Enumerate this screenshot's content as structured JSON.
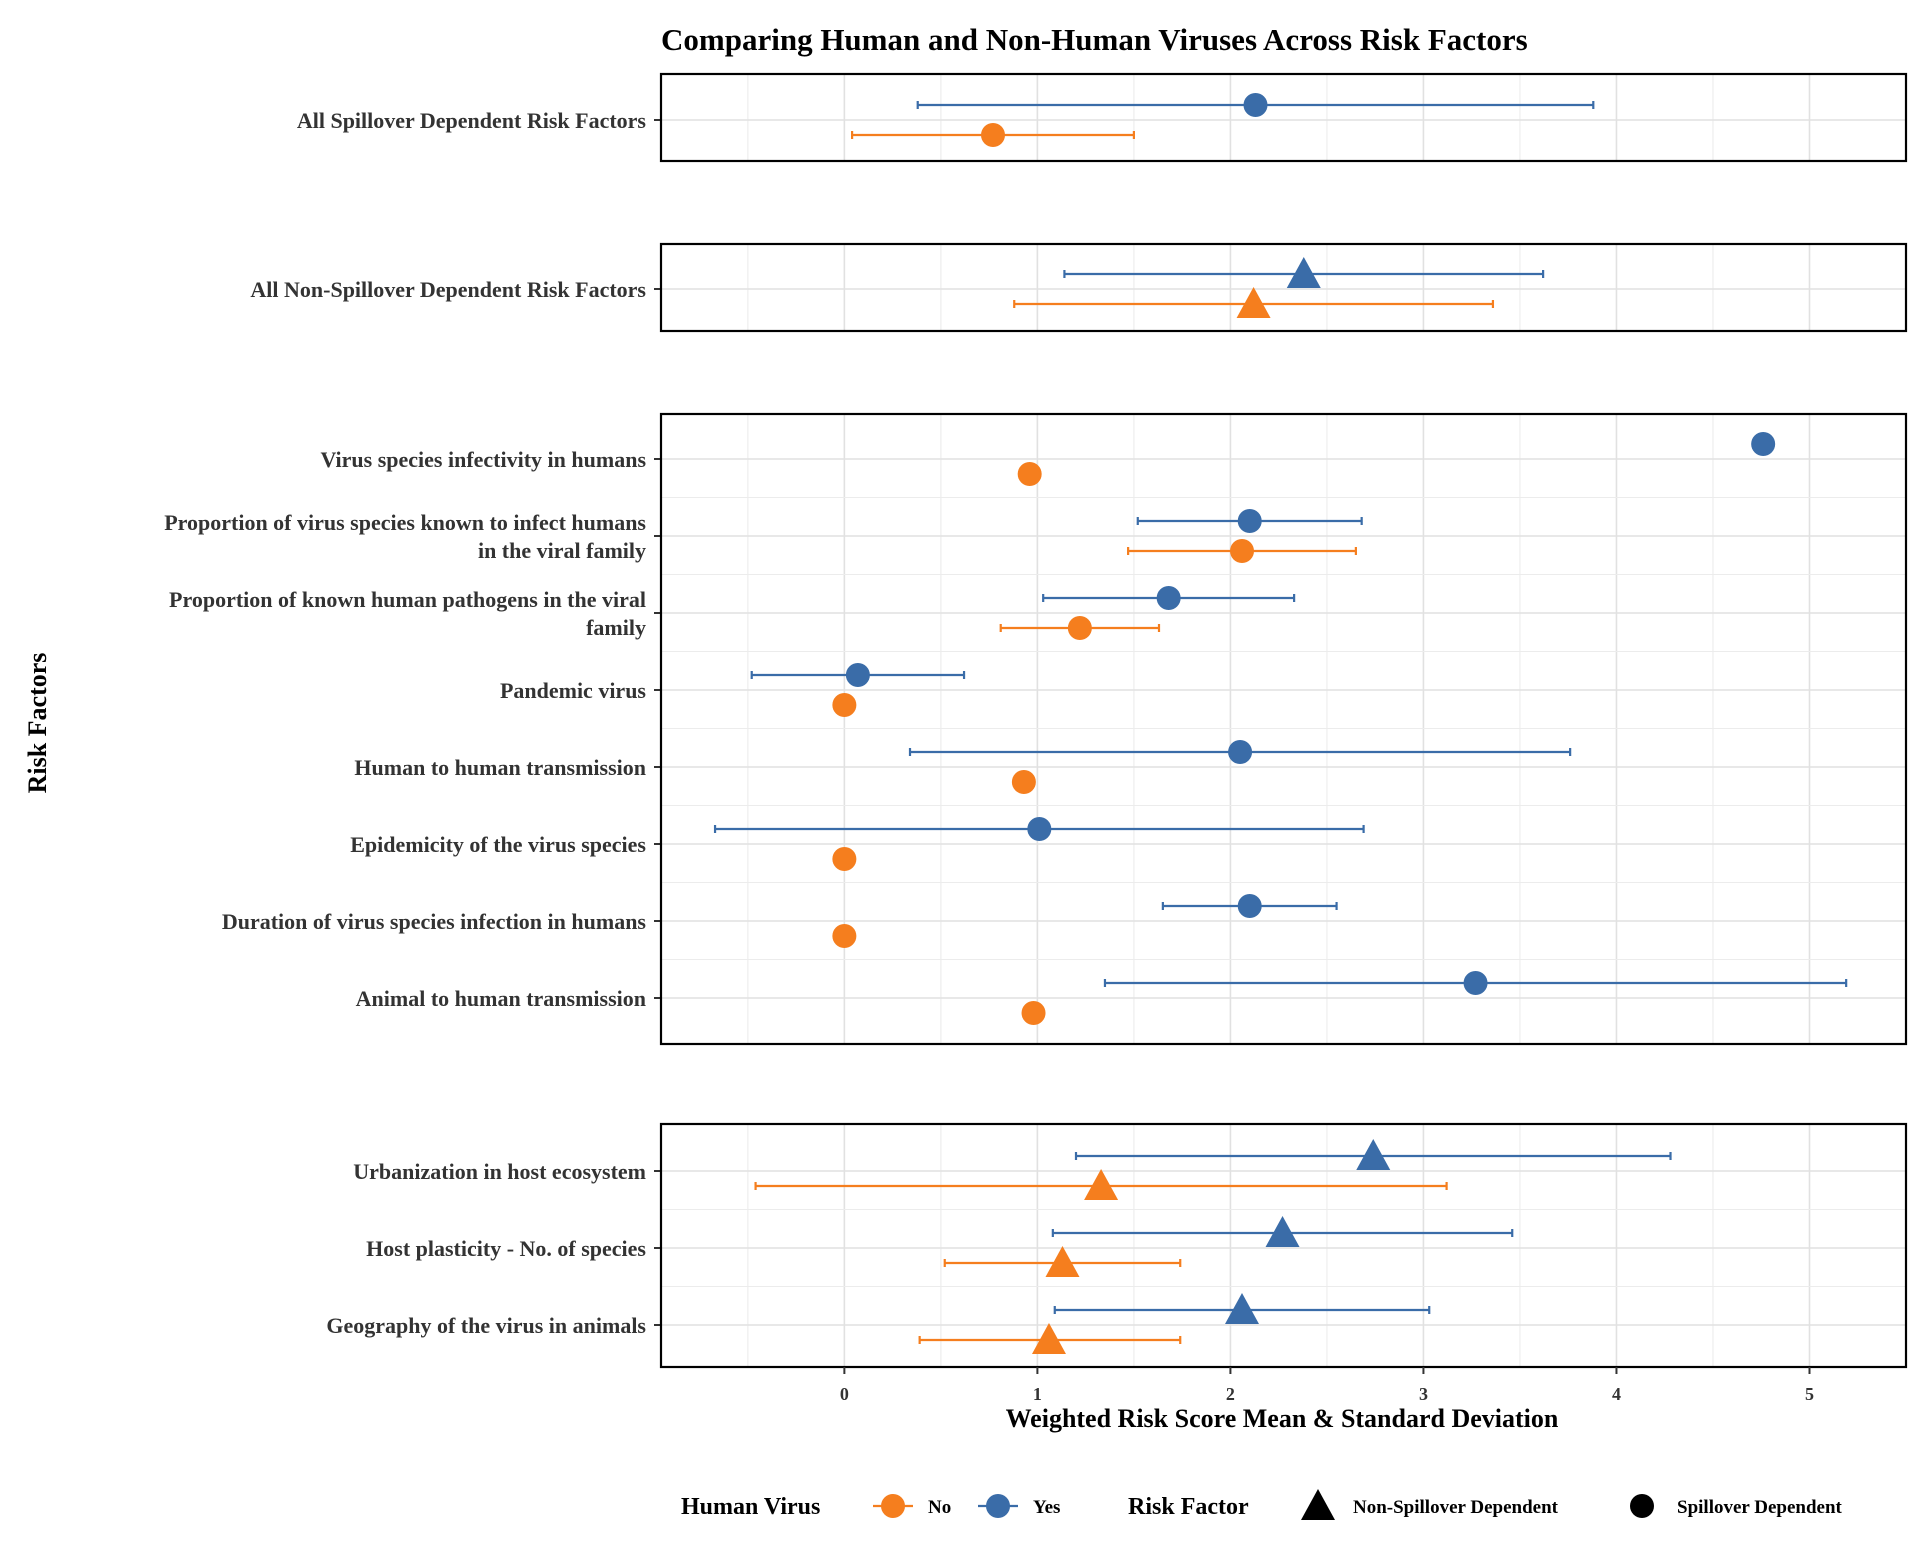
{
  "chart_data": {
    "type": "scatter",
    "title": "Comparing Human and Non-Human Viruses Across Risk Factors",
    "xlabel": "Weighted Risk Score Mean & Standard Deviation",
    "ylabel": "Risk Factors",
    "xlim": [
      -0.95,
      5.5
    ],
    "x_ticks": [
      "0",
      "1",
      "2",
      "3",
      "4",
      "5"
    ],
    "grid": true,
    "legend_placement": "bottom",
    "colors": {
      "No": "#F57E1E",
      "Yes": "#3A6CA8"
    },
    "legend": {
      "human_virus_title": "Human Virus",
      "human_virus_items": [
        "No",
        "Yes"
      ],
      "risk_factor_title": "Risk Factor",
      "risk_factor_items": [
        "Non-Spillover Dependent",
        "Spillover Dependent"
      ]
    },
    "panels": [
      {
        "categories": [
          {
            "label": [
              "All Spillover Dependent Risk Factors"
            ],
            "shape": "circle",
            "yes": {
              "mean": 2.13,
              "lo": 0.38,
              "hi": 3.88
            },
            "no": {
              "mean": 0.77,
              "lo": 0.04,
              "hi": 1.5
            }
          }
        ]
      },
      {
        "categories": [
          {
            "label": [
              "All Non-Spillover Dependent Risk Factors"
            ],
            "shape": "triangle",
            "yes": {
              "mean": 2.38,
              "lo": 1.14,
              "hi": 3.62
            },
            "no": {
              "mean": 2.12,
              "lo": 0.88,
              "hi": 3.36
            }
          }
        ]
      },
      {
        "categories": [
          {
            "label": [
              "Virus species infectivity in humans"
            ],
            "shape": "circle",
            "yes": {
              "mean": 4.76
            },
            "no": {
              "mean": 0.96
            }
          },
          {
            "label": [
              "Proportion of virus species known to infect humans",
              "in the viral family"
            ],
            "shape": "circle",
            "yes": {
              "mean": 2.1,
              "lo": 1.52,
              "hi": 2.68
            },
            "no": {
              "mean": 2.06,
              "lo": 1.47,
              "hi": 2.65
            }
          },
          {
            "label": [
              "Proportion of known human pathogens in the viral",
              "family"
            ],
            "shape": "circle",
            "yes": {
              "mean": 1.68,
              "lo": 1.03,
              "hi": 2.33
            },
            "no": {
              "mean": 1.22,
              "lo": 0.81,
              "hi": 1.63
            }
          },
          {
            "label": [
              "Pandemic virus"
            ],
            "shape": "circle",
            "yes": {
              "mean": 0.07,
              "lo": -0.48,
              "hi": 0.62
            },
            "no": {
              "mean": 0.0
            }
          },
          {
            "label": [
              "Human to human transmission"
            ],
            "shape": "circle",
            "yes": {
              "mean": 2.05,
              "lo": 0.34,
              "hi": 3.76
            },
            "no": {
              "mean": 0.93
            }
          },
          {
            "label": [
              "Epidemicity of the virus species"
            ],
            "shape": "circle",
            "yes": {
              "mean": 1.01,
              "lo": -0.67,
              "hi": 2.69
            },
            "no": {
              "mean": 0.0
            }
          },
          {
            "label": [
              "Duration of virus species infection in humans"
            ],
            "shape": "circle",
            "yes": {
              "mean": 2.1,
              "lo": 1.65,
              "hi": 2.55
            },
            "no": {
              "mean": 0.0
            }
          },
          {
            "label": [
              "Animal to human transmission"
            ],
            "shape": "circle",
            "yes": {
              "mean": 3.27,
              "lo": 1.35,
              "hi": 5.19
            },
            "no": {
              "mean": 0.98
            }
          }
        ]
      },
      {
        "categories": [
          {
            "label": [
              "Urbanization in host ecosystem"
            ],
            "shape": "triangle",
            "yes": {
              "mean": 2.74,
              "lo": 1.2,
              "hi": 4.28
            },
            "no": {
              "mean": 1.33,
              "lo": -0.46,
              "hi": 3.12
            }
          },
          {
            "label": [
              "Host plasticity - No. of species"
            ],
            "shape": "triangle",
            "yes": {
              "mean": 2.27,
              "lo": 1.08,
              "hi": 3.46
            },
            "no": {
              "mean": 1.13,
              "lo": 0.52,
              "hi": 1.74
            }
          },
          {
            "label": [
              "Geography of the virus in animals"
            ],
            "shape": "triangle",
            "yes": {
              "mean": 2.06,
              "lo": 1.09,
              "hi": 3.03
            },
            "no": {
              "mean": 1.06,
              "lo": 0.39,
              "hi": 1.74
            }
          }
        ]
      }
    ]
  }
}
